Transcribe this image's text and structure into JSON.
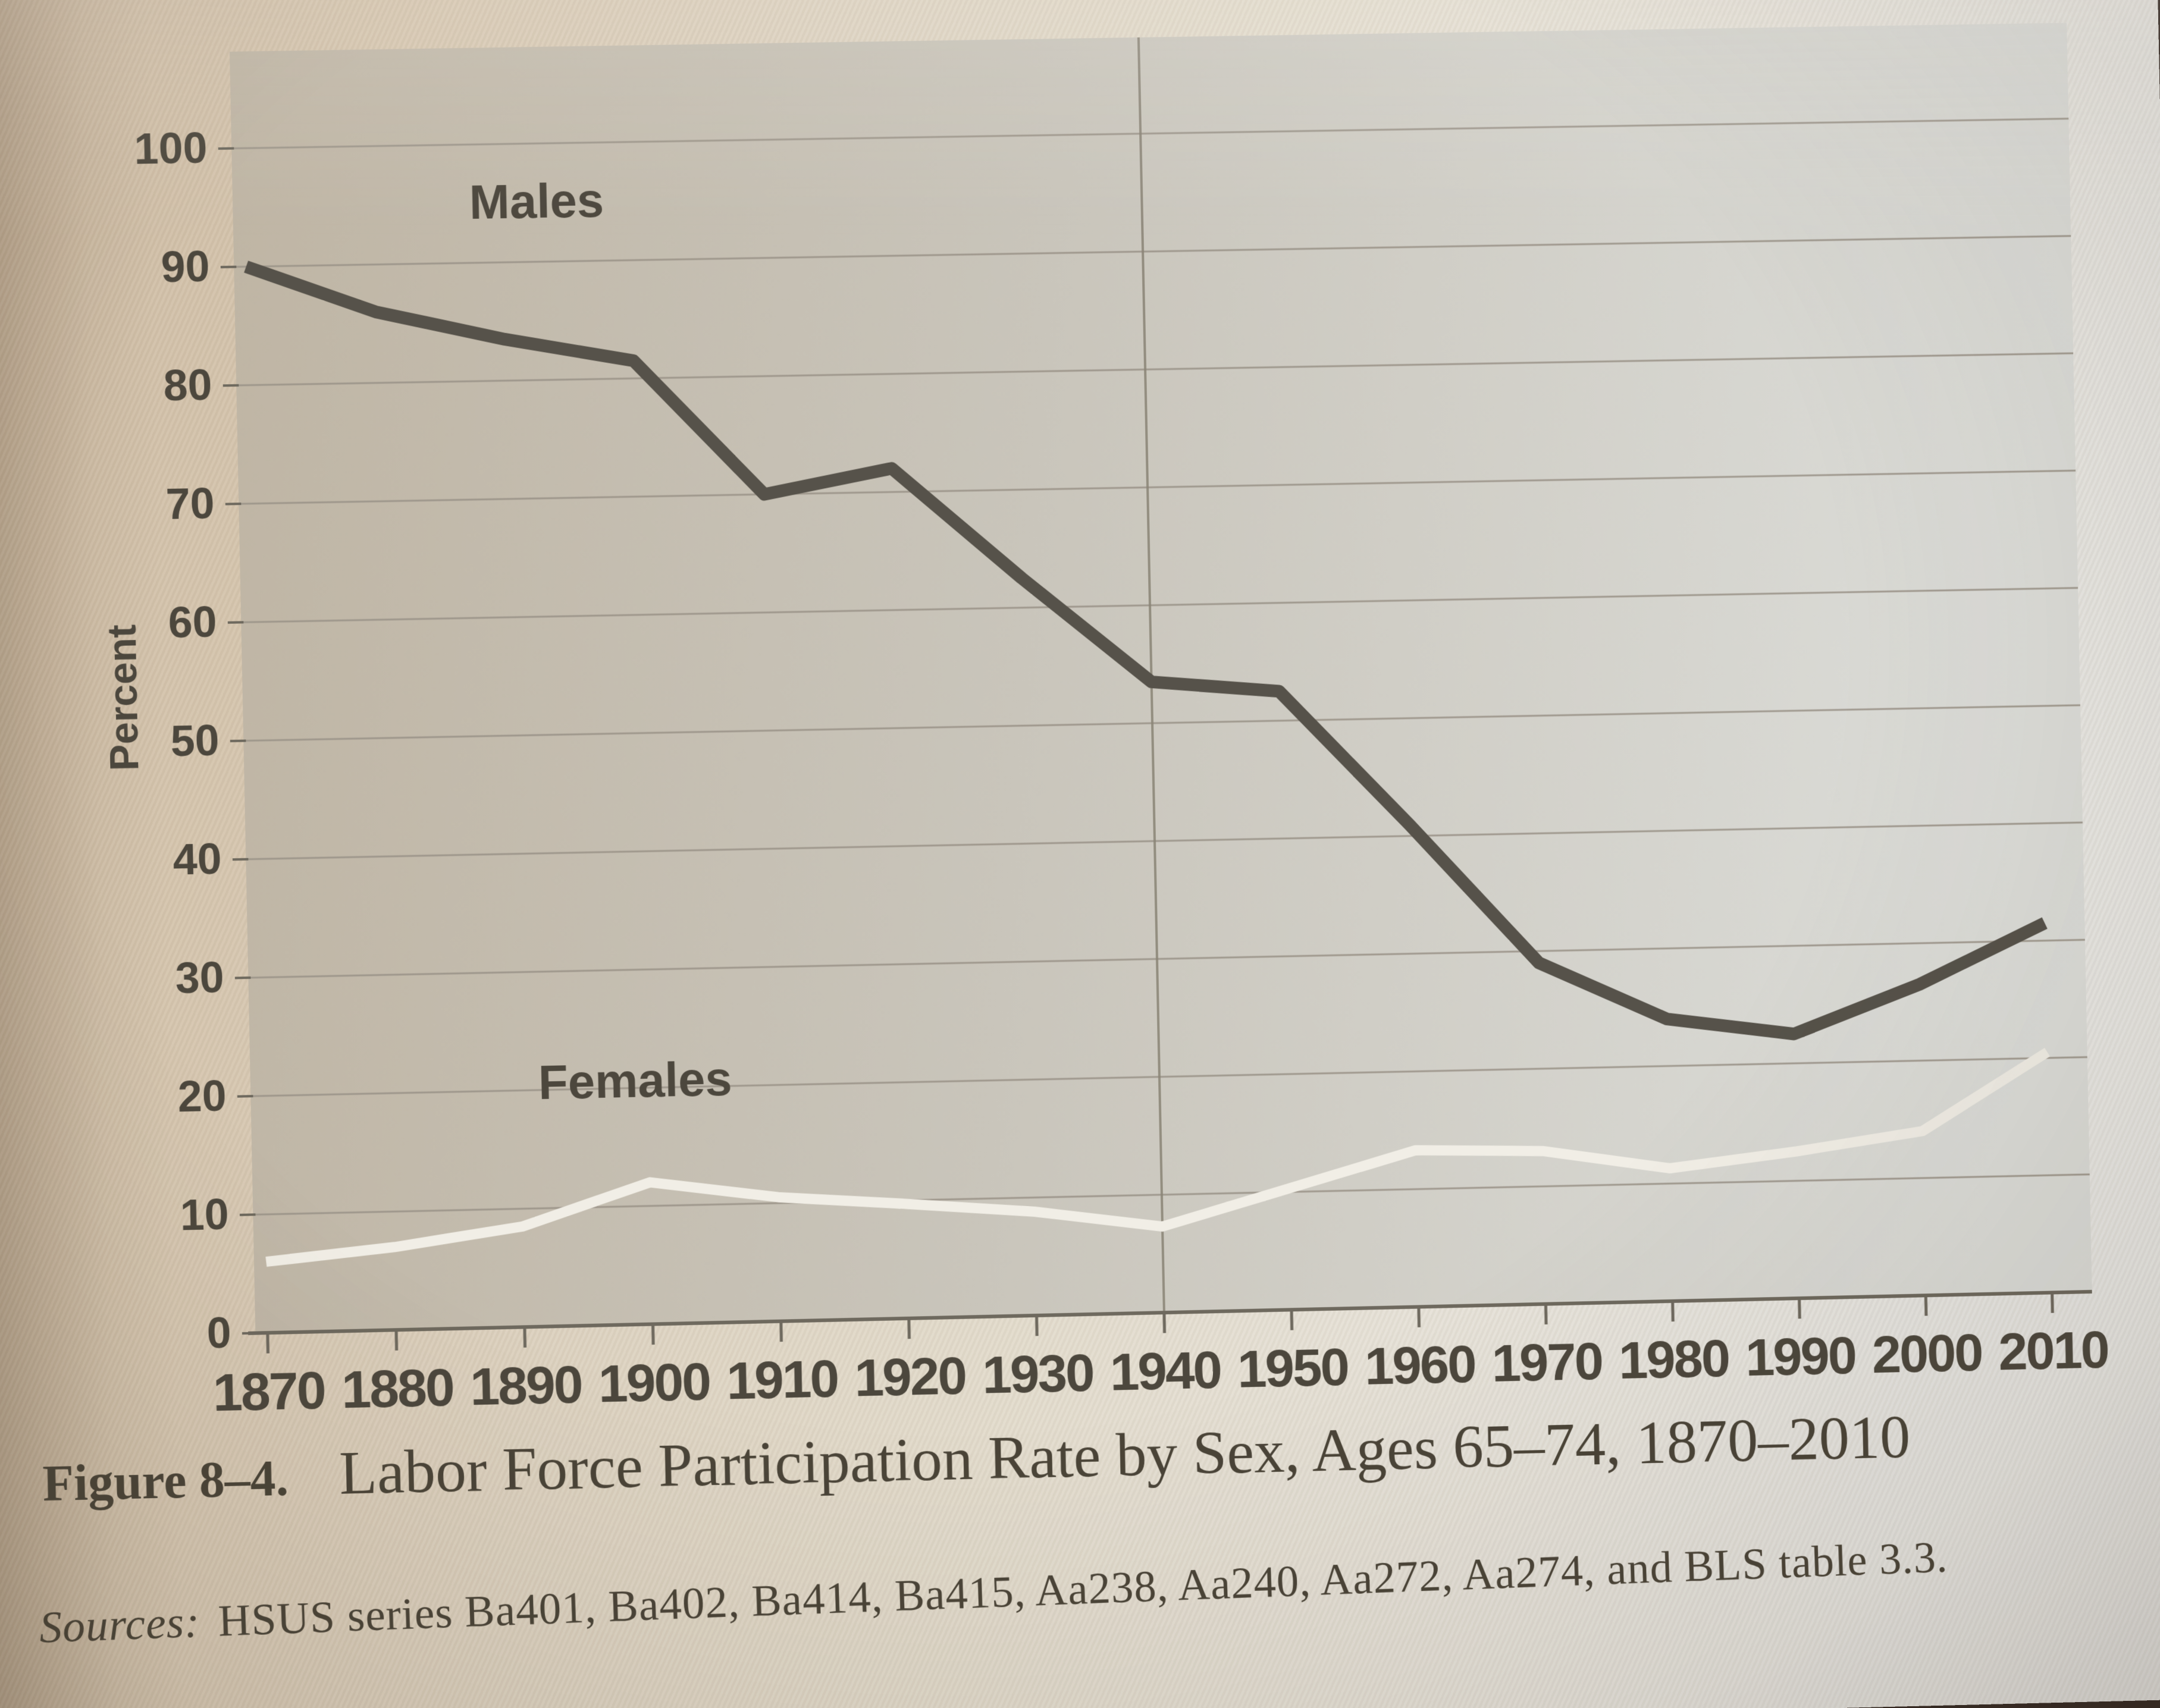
{
  "figure": {
    "figure_label": "Figure 8–4.",
    "title": "Labor Force Participation Rate by Sex, Ages 65–74, 1870–2010",
    "sources_label": "Sources:",
    "sources_text": "HSUS series Ba401, Ba402, Ba414, Ba415, Aa238, Aa240, Aa272, Aa274, and BLS table 3.3."
  },
  "chart_data": {
    "type": "line",
    "title": "",
    "xlabel": "",
    "ylabel": "Percent",
    "x": [
      1870,
      1880,
      1890,
      1900,
      1910,
      1920,
      1930,
      1940,
      1950,
      1960,
      1970,
      1980,
      1990,
      2000,
      2010
    ],
    "series": [
      {
        "name": "Males",
        "color": "#56524a",
        "values": [
          90,
          86,
          83.5,
          81.5,
          70,
          72,
          62.5,
          53.5,
          52.5,
          41,
          29,
          24,
          22.5,
          26.5,
          31.5
        ],
        "label_at": {
          "year": 1895,
          "value": 95
        }
      },
      {
        "name": "Females",
        "color": "#f1eee6",
        "values": [
          6,
          7,
          8.5,
          12,
          10.5,
          9.7,
          8.8,
          7.3,
          10.3,
          13.3,
          13,
          11.3,
          12.5,
          14,
          20.5
        ],
        "label_at": {
          "year": 1899,
          "value": 20.5
        }
      }
    ],
    "ylim": [
      0,
      100
    ],
    "ytick_step": 10,
    "grid": "horizontal",
    "reference_vline_x": 1940,
    "legend_position": "inline-labels",
    "units": "percent"
  },
  "colors": {
    "page_warm": "#cdbaa2",
    "page_mid": "#ddd2c0",
    "page_light": "#e9e8e4",
    "plot_left": "#bfb5a4",
    "plot_mid": "#c9c5bb",
    "plot_right": "#dcddd9",
    "grid": "#9b9489",
    "axis": "#6e695e",
    "vline": "#8a8476",
    "text_dark": "#4c473d",
    "caption_color": "#4a4438"
  }
}
